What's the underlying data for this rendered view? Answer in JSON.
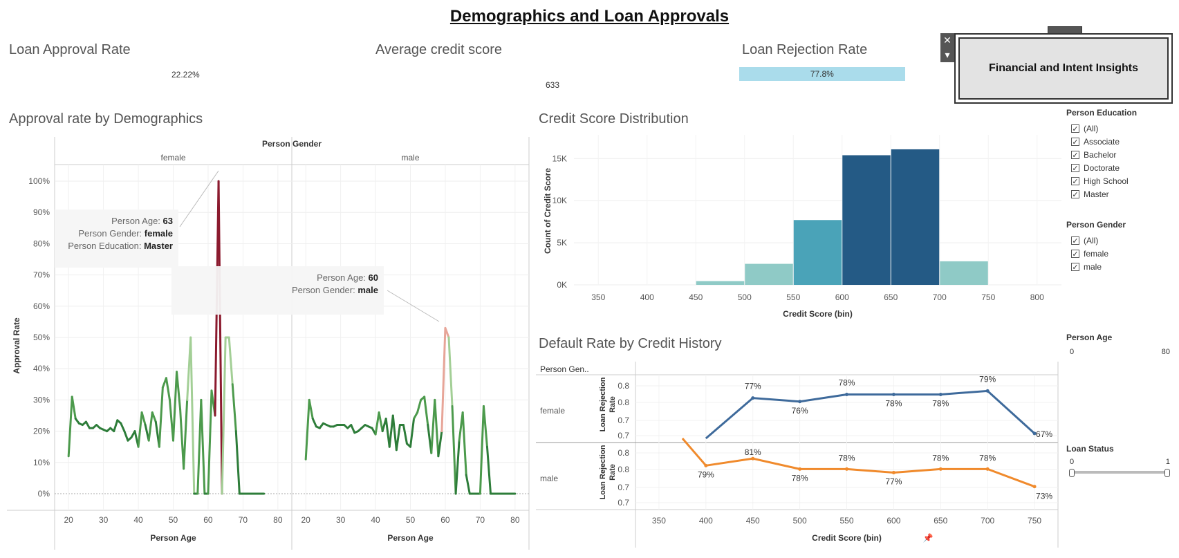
{
  "header": {
    "title": "Demographics and Loan Approvals"
  },
  "kpis": {
    "approval": {
      "title": "Loan Approval Rate",
      "value": "22.22%"
    },
    "credit": {
      "title": "Average credit score",
      "value": "633"
    },
    "rejection": {
      "title": "Loan Rejection Rate",
      "value": "77.8%",
      "fraction": 0.778
    }
  },
  "nav": {
    "label": "Financial and Intent Insights",
    "close_glyph": "✕",
    "menu_glyph": "▾"
  },
  "sections": {
    "approval_demo": "Approval rate by Demographics",
    "credit_dist": "Credit Score Distribution",
    "default_rate": "Default Rate by Credit History"
  },
  "tooltips": {
    "female": {
      "age_label": "Person Age:",
      "age": "63",
      "gender_label": "Person Gender:",
      "gender": "female",
      "edu_label": "Person Education:",
      "edu": "Master"
    },
    "male": {
      "age_label": "Person Age:",
      "age": "60",
      "gender_label": "Person Gender:",
      "gender": "male"
    }
  },
  "filters": {
    "education": {
      "title": "Person Education",
      "items": [
        "(All)",
        "Associate",
        "Bachelor",
        "Doctorate",
        "High School",
        "Master"
      ]
    },
    "gender": {
      "title": "Person Gender",
      "items": [
        "(All)",
        "female",
        "male"
      ]
    },
    "age": {
      "title": "Person Age",
      "min": "0",
      "max": "80"
    },
    "loan_status": {
      "title": "Loan Status",
      "min": "0",
      "max": "1"
    }
  },
  "colors": {
    "female_line": "#3e6a9b",
    "male_line": "#f08a2c",
    "bar_light": "#8fcac6",
    "bar_mid": "#4aa3b8",
    "bar_dark": "#245a85",
    "rejection_bar": "#aadceb"
  },
  "chart_data": [
    {
      "type": "line",
      "title": "Approval rate by Demographics",
      "header": "Person Gender",
      "panels": [
        "female",
        "male"
      ],
      "xlabel": "Person Age",
      "ylabel": "Approval Rate",
      "xticks": [
        20,
        30,
        40,
        50,
        60,
        70,
        80
      ],
      "yticks": [
        "0%",
        "10%",
        "20%",
        "30%",
        "40%",
        "50%",
        "60%",
        "70%",
        "80%",
        "90%",
        "100%"
      ],
      "xlim": [
        16,
        84
      ],
      "ylim": [
        0,
        1
      ],
      "series": [
        {
          "panel": "female",
          "x": [
            20,
            21,
            22,
            23,
            24,
            25,
            26,
            27,
            28,
            29,
            30,
            31,
            32,
            33,
            34,
            35,
            36,
            37,
            38,
            39,
            40,
            41,
            42,
            43,
            44,
            45,
            46,
            47,
            48,
            49,
            50,
            51,
            52,
            53,
            54,
            55,
            56,
            57,
            58,
            59,
            60,
            61,
            62,
            63,
            64,
            65,
            66,
            67,
            68,
            69,
            70,
            71,
            72,
            73,
            74,
            75,
            76
          ],
          "y": [
            0.12,
            0.31,
            0.24,
            0.225,
            0.22,
            0.23,
            0.21,
            0.21,
            0.22,
            0.21,
            0.205,
            0.2,
            0.21,
            0.2,
            0.235,
            0.225,
            0.2,
            0.17,
            0.18,
            0.2,
            0.15,
            0.26,
            0.22,
            0.17,
            0.26,
            0.23,
            0.15,
            0.34,
            0.37,
            0.3,
            0.17,
            0.39,
            0.27,
            0.08,
            0.3,
            0.5,
            0.0,
            0.0,
            0.3,
            0.0,
            0.0,
            0.33,
            0.25,
            1.0,
            0.0,
            0.5,
            0.5,
            0.35,
            0.2,
            0.0,
            0.0,
            0.0,
            0.0,
            0.0,
            0.0,
            0.0,
            0.0
          ]
        },
        {
          "panel": "male",
          "x": [
            20,
            21,
            22,
            23,
            24,
            25,
            26,
            27,
            28,
            29,
            30,
            31,
            32,
            33,
            34,
            35,
            36,
            37,
            38,
            39,
            40,
            41,
            42,
            43,
            44,
            45,
            46,
            47,
            48,
            49,
            50,
            51,
            52,
            53,
            54,
            55,
            56,
            57,
            58,
            59,
            60,
            61,
            62,
            63,
            64,
            65,
            66,
            67,
            68,
            69,
            70,
            71,
            72,
            73,
            74,
            75,
            76,
            77,
            78,
            79,
            80
          ],
          "y": [
            0.11,
            0.3,
            0.24,
            0.215,
            0.21,
            0.225,
            0.22,
            0.215,
            0.215,
            0.22,
            0.22,
            0.22,
            0.21,
            0.22,
            0.195,
            0.2,
            0.21,
            0.22,
            0.215,
            0.21,
            0.19,
            0.26,
            0.2,
            0.24,
            0.15,
            0.25,
            0.14,
            0.22,
            0.22,
            0.16,
            0.15,
            0.24,
            0.26,
            0.3,
            0.31,
            0.22,
            0.13,
            0.3,
            0.12,
            0.2,
            0.53,
            0.5,
            0.28,
            0.0,
            0.17,
            0.26,
            0.06,
            0.0,
            0.0,
            0.0,
            0.0,
            0.28,
            0.15,
            0.0,
            0.0,
            0.0,
            0.0,
            0.0,
            0.0,
            0.0,
            0.0
          ]
        }
      ]
    },
    {
      "type": "bar",
      "title": "Credit Score Distribution",
      "xlabel": "Credit Score (bin)",
      "ylabel": "Count of Credit Score",
      "xticks": [
        350,
        400,
        450,
        500,
        550,
        600,
        650,
        700,
        750,
        800
      ],
      "yticks": [
        "0K",
        "5K",
        "10K",
        "15K"
      ],
      "xlim": [
        325,
        825
      ],
      "ylim": [
        0,
        17000
      ],
      "bins": [
        450,
        500,
        550,
        600,
        650,
        700
      ],
      "bin_width": 50,
      "values": [
        450,
        2500,
        7700,
        15400,
        16100,
        2800
      ]
    },
    {
      "type": "line",
      "title": "Default Rate by Credit History",
      "row_header": "Person Gen..",
      "ylabel": "Loan Rejection Rate",
      "xlabel": "Credit Score (bin)",
      "xticks": [
        350,
        400,
        450,
        500,
        550,
        600,
        650,
        700,
        750
      ],
      "xlim": [
        325,
        775
      ],
      "series": [
        {
          "name": "female",
          "x": [
            400,
            450,
            500,
            550,
            600,
            650,
            700,
            750
          ],
          "y": [
            0.6,
            0.77,
            0.76,
            0.78,
            0.78,
            0.78,
            0.79,
            0.67
          ],
          "labels": [
            "",
            "77%",
            "76%",
            "78%",
            "78%",
            "78%",
            "79%",
            "67%"
          ],
          "yticks": [
            "0.7",
            "0.7",
            "0.8",
            "0.8"
          ],
          "ylim": [
            0.66,
            0.82
          ]
        },
        {
          "name": "male",
          "x": [
            375,
            400,
            450,
            500,
            550,
            600,
            650,
            700,
            750
          ],
          "y": [
            0.88,
            0.79,
            0.81,
            0.78,
            0.78,
            0.77,
            0.78,
            0.78,
            0.73
          ],
          "labels": [
            "",
            "79%",
            "81%",
            "78%",
            "78%",
            "77%",
            "78%",
            "78%",
            "73%"
          ],
          "yticks": [
            "0.7",
            "0.7",
            "0.8",
            "0.8"
          ],
          "ylim": [
            0.68,
            0.84
          ]
        }
      ]
    }
  ]
}
